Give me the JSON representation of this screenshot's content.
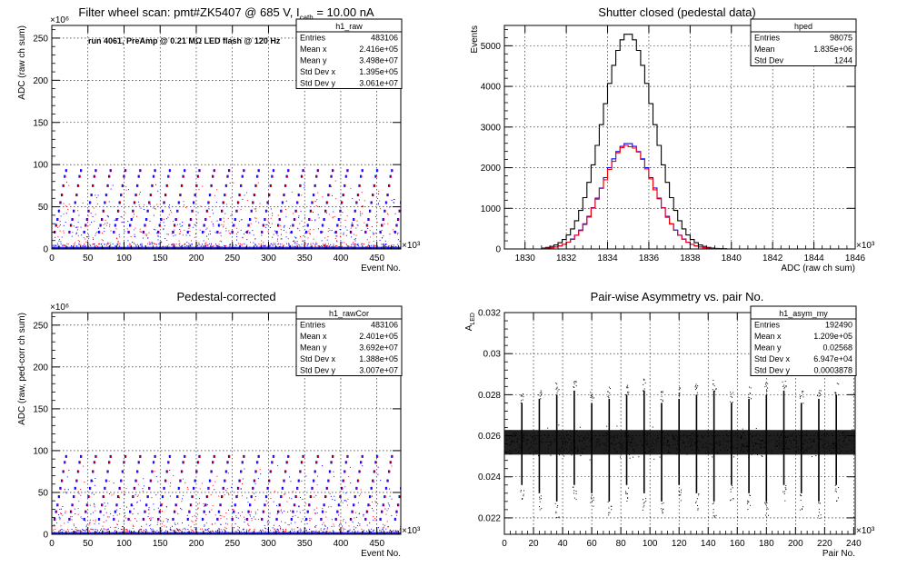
{
  "chart_data": [
    {
      "id": "raw",
      "type": "scatter",
      "title": "Filter wheel scan: pmt#ZK5407 @   685 V, I",
      "title_sub": "cath",
      "title_tail": " = 10.00 nA",
      "annotation": "run 4061, PreAmp @ 0.21 MΩ LED flash @  120 Hz",
      "xlabel": "Event No.",
      "ylabel": "ADC (raw ch sum)",
      "x_multiplier": "×10³",
      "y_multiplier": "×10⁶",
      "xlim": [
        0,
        483.106
      ],
      "ylim": [
        0,
        265
      ],
      "xticks": [
        0,
        50,
        100,
        150,
        200,
        250,
        300,
        350,
        400,
        450
      ],
      "yticks": [
        0,
        50,
        100,
        150,
        200,
        250
      ],
      "grid": true,
      "step_levels_y": [
        5,
        20,
        28,
        35,
        45,
        55,
        64,
        75,
        86,
        93
      ],
      "stats": {
        "name": "h1_raw",
        "rows": [
          {
            "k": "Entries",
            "v": "483106"
          },
          {
            "k": "Mean x",
            "v": "2.416e+05"
          },
          {
            "k": "Mean y",
            "v": "3.498e+07"
          },
          {
            "k": "Std Dev x",
            "v": "1.395e+05"
          },
          {
            "k": "Std Dev y",
            "v": "3.061e+07"
          }
        ]
      }
    },
    {
      "id": "ped",
      "type": "line",
      "title": "Shutter closed (pedestal data)",
      "xlabel": "ADC (raw ch sum)",
      "ylabel": "Events",
      "x_multiplier": "×10³",
      "xlim": [
        1829,
        1846
      ],
      "ylim": [
        0,
        5500
      ],
      "xticks": [
        1830,
        1832,
        1834,
        1836,
        1838,
        1840,
        1842,
        1844,
        1846
      ],
      "yticks": [
        0,
        1000,
        2000,
        3000,
        4000,
        5000
      ],
      "grid": true,
      "series": [
        {
          "color": "#000000",
          "mean": 1835.0,
          "sigma": 1.24,
          "peak": 5300
        },
        {
          "color": "#0000ff",
          "mean": 1835.0,
          "sigma": 1.24,
          "peak": 2600
        },
        {
          "color": "#ff0000",
          "mean": 1835.0,
          "sigma": 1.24,
          "peak": 2550
        }
      ],
      "stats": {
        "name": "hped",
        "rows": [
          {
            "k": "Entries",
            "v": "98075"
          },
          {
            "k": "Mean",
            "v": "1.835e+06"
          },
          {
            "k": "Std Dev",
            "v": "1244"
          }
        ]
      }
    },
    {
      "id": "cor",
      "type": "scatter",
      "title": "Pedestal-corrected",
      "xlabel": "Event No.",
      "ylabel": "ADC (raw, ped-corr ch sum)",
      "x_multiplier": "×10³",
      "y_multiplier": "×10⁶",
      "xlim": [
        0,
        483.106
      ],
      "ylim": [
        0,
        265
      ],
      "xticks": [
        0,
        50,
        100,
        150,
        200,
        250,
        300,
        350,
        400,
        450
      ],
      "yticks": [
        0,
        50,
        100,
        150,
        200,
        250
      ],
      "grid": true,
      "step_levels_y": [
        2,
        18,
        27,
        35,
        45,
        55,
        64,
        75,
        86,
        93
      ],
      "stats": {
        "name": "h1_rawCor",
        "rows": [
          {
            "k": "Entries",
            "v": "483106"
          },
          {
            "k": "Mean x",
            "v": "2.401e+05"
          },
          {
            "k": "Mean y",
            "v": "3.692e+07"
          },
          {
            "k": "Std Dev x",
            "v": "1.388e+05"
          },
          {
            "k": "Std Dev y",
            "v": "3.007e+07"
          }
        ]
      }
    },
    {
      "id": "asym",
      "type": "scatter",
      "title": "Pair-wise Asymmetry vs. pair No.",
      "xlabel": "Pair No.",
      "ylabel": "A",
      "ylabel_sub": "LED",
      "x_multiplier": "×10³",
      "xlim": [
        0,
        241
      ],
      "ylim": [
        0.0212,
        0.032
      ],
      "xticks": [
        0,
        20,
        40,
        60,
        80,
        100,
        120,
        140,
        160,
        180,
        200,
        220,
        240
      ],
      "yticks": [
        0.022,
        0.024,
        0.026,
        0.028,
        0.03,
        0.032
      ],
      "ytick_labels": [
        "0.022",
        "0.024",
        "0.026",
        "0.028",
        "0.03",
        "0.032"
      ],
      "grid": true,
      "band": {
        "center": 0.02568,
        "halfwidth": 0.0006
      },
      "spikes_x": [
        12,
        24,
        36,
        48,
        60,
        72,
        84,
        96,
        108,
        120,
        132,
        144,
        156,
        168,
        180,
        192,
        204,
        216,
        228
      ],
      "stats": {
        "name": "h1_asym_my",
        "rows": [
          {
            "k": "Entries",
            "v": "192490"
          },
          {
            "k": "Mean x",
            "v": "1.209e+05"
          },
          {
            "k": "Mean y",
            "v": "0.02568"
          },
          {
            "k": "Std Dev x",
            "v": "6.947e+04"
          },
          {
            "k": "Std Dev y",
            "v": "0.0003878"
          }
        ]
      }
    }
  ]
}
